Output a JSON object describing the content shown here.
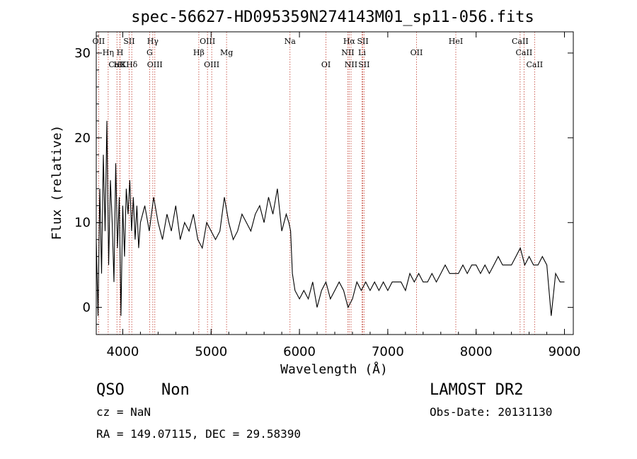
{
  "chart_data": {
    "type": "line",
    "title": "spec-56627-HD095359N274143M01_sp11-056.fits",
    "xlabel": "Wavelength (Å)",
    "ylabel": "Flux (relative)",
    "xlim": [
      3700,
      9100
    ],
    "ylim": [
      -3.2,
      32.5
    ],
    "xticks": [
      4000,
      5000,
      6000,
      7000,
      8000,
      9000
    ],
    "yticks": [
      0,
      10,
      20,
      30
    ],
    "grid": false,
    "series": [
      {
        "x": [
          3700,
          3720,
          3740,
          3760,
          3780,
          3800,
          3820,
          3840,
          3860,
          3880,
          3900,
          3920,
          3940,
          3960,
          3980,
          4000,
          4020,
          4040,
          4060,
          4080,
          4100,
          4120,
          4140,
          4160,
          4180,
          4200,
          4250,
          4300,
          4350,
          4400,
          4450,
          4500,
          4550,
          4600,
          4650,
          4700,
          4750,
          4800,
          4850,
          4900,
          4950,
          5000,
          5050,
          5100,
          5150,
          5200,
          5250,
          5300,
          5350,
          5400,
          5450,
          5500,
          5550,
          5600,
          5650,
          5700,
          5750,
          5800,
          5850,
          5880,
          5900,
          5920,
          5950,
          6000,
          6050,
          6100,
          6150,
          6200,
          6250,
          6300,
          6350,
          6400,
          6450,
          6500,
          6550,
          6600,
          6650,
          6700,
          6750,
          6800,
          6850,
          6900,
          6950,
          7000,
          7050,
          7100,
          7150,
          7200,
          7250,
          7300,
          7350,
          7400,
          7450,
          7500,
          7550,
          7600,
          7650,
          7700,
          7750,
          7800,
          7850,
          7900,
          7950,
          8000,
          8050,
          8100,
          8150,
          8200,
          8250,
          8300,
          8350,
          8400,
          8450,
          8500,
          8550,
          8600,
          8650,
          8700,
          8750,
          8800,
          8850,
          8900,
          8950,
          9000
        ],
        "y": [
          8,
          -1,
          14,
          4,
          18,
          9,
          22,
          5,
          15,
          10,
          3,
          17,
          7,
          13,
          -1,
          12,
          6,
          14,
          11,
          15,
          9,
          13,
          8,
          12,
          7,
          10,
          12,
          9,
          13,
          10,
          8,
          11,
          9,
          12,
          8,
          10,
          9,
          11,
          8,
          7,
          10,
          9,
          8,
          9,
          13,
          10,
          8,
          9,
          11,
          10,
          9,
          11,
          12,
          10,
          13,
          11,
          14,
          9,
          11,
          10,
          9,
          4,
          2,
          1,
          2,
          1,
          3,
          0,
          2,
          3,
          1,
          2,
          3,
          2,
          0,
          1,
          3,
          2,
          3,
          2,
          3,
          2,
          3,
          2,
          3,
          3,
          3,
          2,
          4,
          3,
          4,
          3,
          3,
          4,
          3,
          4,
          5,
          4,
          4,
          4,
          5,
          4,
          5,
          5,
          4,
          5,
          4,
          5,
          6,
          5,
          5,
          5,
          6,
          7,
          5,
          6,
          5,
          5,
          6,
          5,
          -1,
          4,
          3,
          3
        ]
      }
    ],
    "lines": [
      {
        "label": "OII",
        "w": 3727,
        "row": 1
      },
      {
        "label": "Hη",
        "w": 3835,
        "row": 2
      },
      {
        "label": "H",
        "w": 3969,
        "row": 2
      },
      {
        "label": "CaII",
        "w": 3934,
        "row": 3
      },
      {
        "label": "HK",
        "w": 3968,
        "row": 3
      },
      {
        "label": "SII",
        "w": 4072,
        "row": 1
      },
      {
        "label": "Hδ",
        "w": 4102,
        "row": 3
      },
      {
        "label": "Hγ",
        "w": 4340,
        "row": 1
      },
      {
        "label": "G",
        "w": 4304,
        "row": 2
      },
      {
        "label": "OIII",
        "w": 4363,
        "row": 3
      },
      {
        "label": "OIII",
        "w": 4959,
        "row": 1
      },
      {
        "label": "Hβ",
        "w": 4861,
        "row": 2
      },
      {
        "label": "OIII",
        "w": 5007,
        "row": 3
      },
      {
        "label": "Mg",
        "w": 5175,
        "row": 2
      },
      {
        "label": "Na",
        "w": 5893,
        "row": 1
      },
      {
        "label": "OI",
        "w": 6300,
        "row": 3
      },
      {
        "label": "Hα",
        "w": 6563,
        "row": 1
      },
      {
        "label": "SII",
        "w": 6717,
        "row": 1
      },
      {
        "label": "NII",
        "w": 6548,
        "row": 2
      },
      {
        "label": "Li",
        "w": 6708,
        "row": 2
      },
      {
        "label": "NII",
        "w": 6584,
        "row": 3
      },
      {
        "label": "SII",
        "w": 6731,
        "row": 3
      },
      {
        "label": "OII",
        "w": 7325,
        "row": 2
      },
      {
        "label": "HeI",
        "w": 7770,
        "row": 1
      },
      {
        "label": "CaII",
        "w": 8498,
        "row": 1
      },
      {
        "label": "CaII",
        "w": 8542,
        "row": 2
      },
      {
        "label": "CaII",
        "w": 8662,
        "row": 3
      }
    ]
  },
  "info": {
    "class": "QSO",
    "subclass": "Non",
    "survey": "LAMOST DR2",
    "cz": "cz = NaN",
    "obs_date": "Obs-Date: 20131130",
    "coords": "RA = 149.07115, DEC =  29.58390"
  }
}
